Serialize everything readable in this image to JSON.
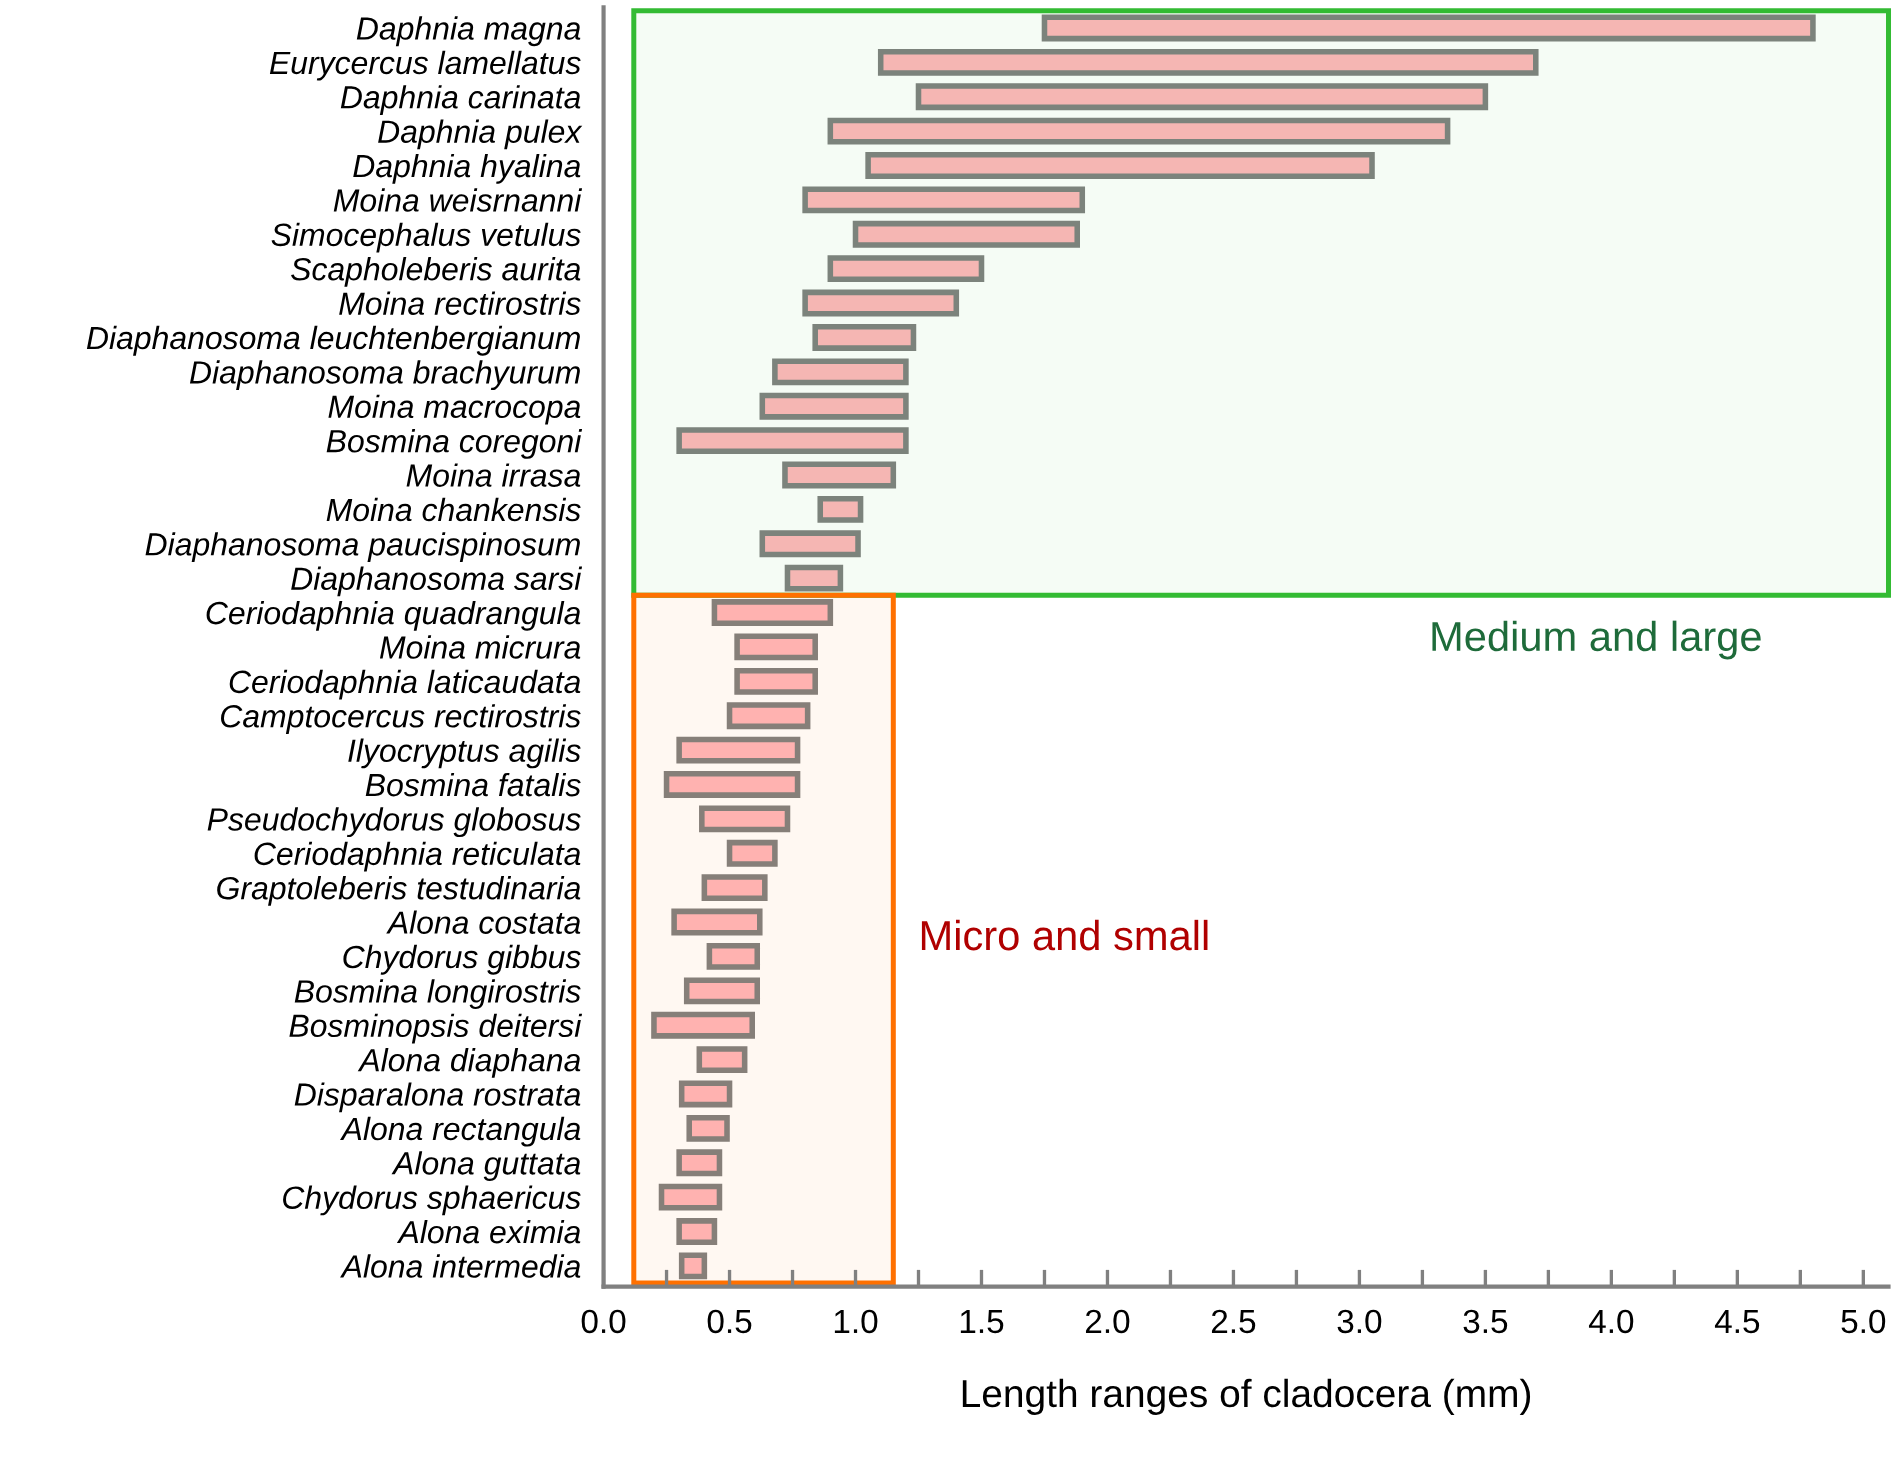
{
  "chart_data": {
    "type": "bar",
    "orientation": "horizontal",
    "xlabel": "Length ranges of cladocera (mm)",
    "categories": [
      "Daphnia magna",
      "Eurycercus lamellatus",
      "Daphnia carinata",
      "Daphnia pulex",
      "Daphnia hyalina",
      "Moina weisrnanni",
      "Simocephalus vetulus",
      "Scapholeberis aurita",
      "Moina rectirostris",
      "Diaphanosoma leuchtenbergianum",
      "Diaphanosoma brachyurum",
      "Moina macrocopa",
      "Bosmina coregoni",
      "Moina irrasa",
      "Moina chankensis",
      "Diaphanosoma paucispinosum",
      "Diaphanosoma sarsi",
      "Ceriodaphnia quadrangula",
      "Moina micrura",
      "Ceriodaphnia laticaudata",
      "Camptocercus rectirostris",
      "Ilyocryptus agilis",
      "Bosmina fatalis",
      "Pseudochydorus globosus",
      "Ceriodaphnia reticulata",
      "Graptoleberis testudinaria",
      "Alona costata",
      "Chydorus gibbus",
      "Bosmina longirostris",
      "Bosminopsis deitersi",
      "Alona diaphana",
      "Disparalona rostrata",
      "Alona rectangula",
      "Alona guttata",
      "Chydorus sphaericus",
      "Alona eximia",
      "Alona intermedia"
    ],
    "base": [
      1.75,
      1.1,
      1.25,
      0.9,
      1.05,
      0.8,
      1.0,
      0.9,
      0.8,
      0.84,
      0.68,
      0.63,
      0.3,
      0.72,
      0.86,
      0.63,
      0.73,
      0.44,
      0.53,
      0.53,
      0.5,
      0.3,
      0.25,
      0.39,
      0.5,
      0.4,
      0.28,
      0.42,
      0.33,
      0.2,
      0.38,
      0.31,
      0.34,
      0.3,
      0.23,
      0.3,
      0.31
    ],
    "values": [
      3.05,
      2.6,
      2.25,
      2.45,
      2.0,
      1.1,
      0.88,
      0.6,
      0.6,
      0.39,
      0.52,
      0.57,
      0.9,
      0.43,
      0.16,
      0.38,
      0.21,
      0.46,
      0.31,
      0.31,
      0.31,
      0.47,
      0.52,
      0.34,
      0.18,
      0.24,
      0.34,
      0.19,
      0.28,
      0.39,
      0.18,
      0.19,
      0.15,
      0.16,
      0.23,
      0.14,
      0.09
    ],
    "color": "#ffb6ba",
    "xlim": [
      0,
      5.1
    ],
    "xticks": [
      {
        "value": 0,
        "label": "0.0"
      },
      {
        "value": 0.25,
        "label": null
      },
      0.5,
      {
        "value": 0.75,
        "label": null
      },
      {
        "value": 1,
        "label": "1.0"
      },
      {
        "value": 1.25,
        "label": null
      },
      1.5,
      {
        "value": 1.75,
        "label": null
      },
      {
        "value": 2,
        "label": "2.0"
      },
      {
        "value": 2.25,
        "label": null
      },
      2.5,
      {
        "value": 2.75,
        "label": null
      },
      {
        "value": 3,
        "label": "3.0"
      },
      {
        "value": 3.25,
        "label": null
      },
      3.5,
      {
        "value": 3.75,
        "label": null
      },
      {
        "value": 4,
        "label": "4.0"
      },
      {
        "value": 4.25,
        "label": null
      },
      4.5,
      {
        "value": 4.75,
        "label": null
      },
      {
        "value": 5,
        "label": "5.0"
      }
    ],
    "bands": [
      {
        "axis": "y",
        "from": "Daphnia magna",
        "to": "Diaphanosoma sarsi",
        "label": "Medium and large",
        "color": "#33bb33"
      },
      {
        "axis": "y",
        "from": "Ceriodaphnia quadrangula",
        "to": "Alona intermedia",
        "label": "Micro and small",
        "color": "#ff7000"
      }
    ],
    "grid": false,
    "legend": false
  }
}
